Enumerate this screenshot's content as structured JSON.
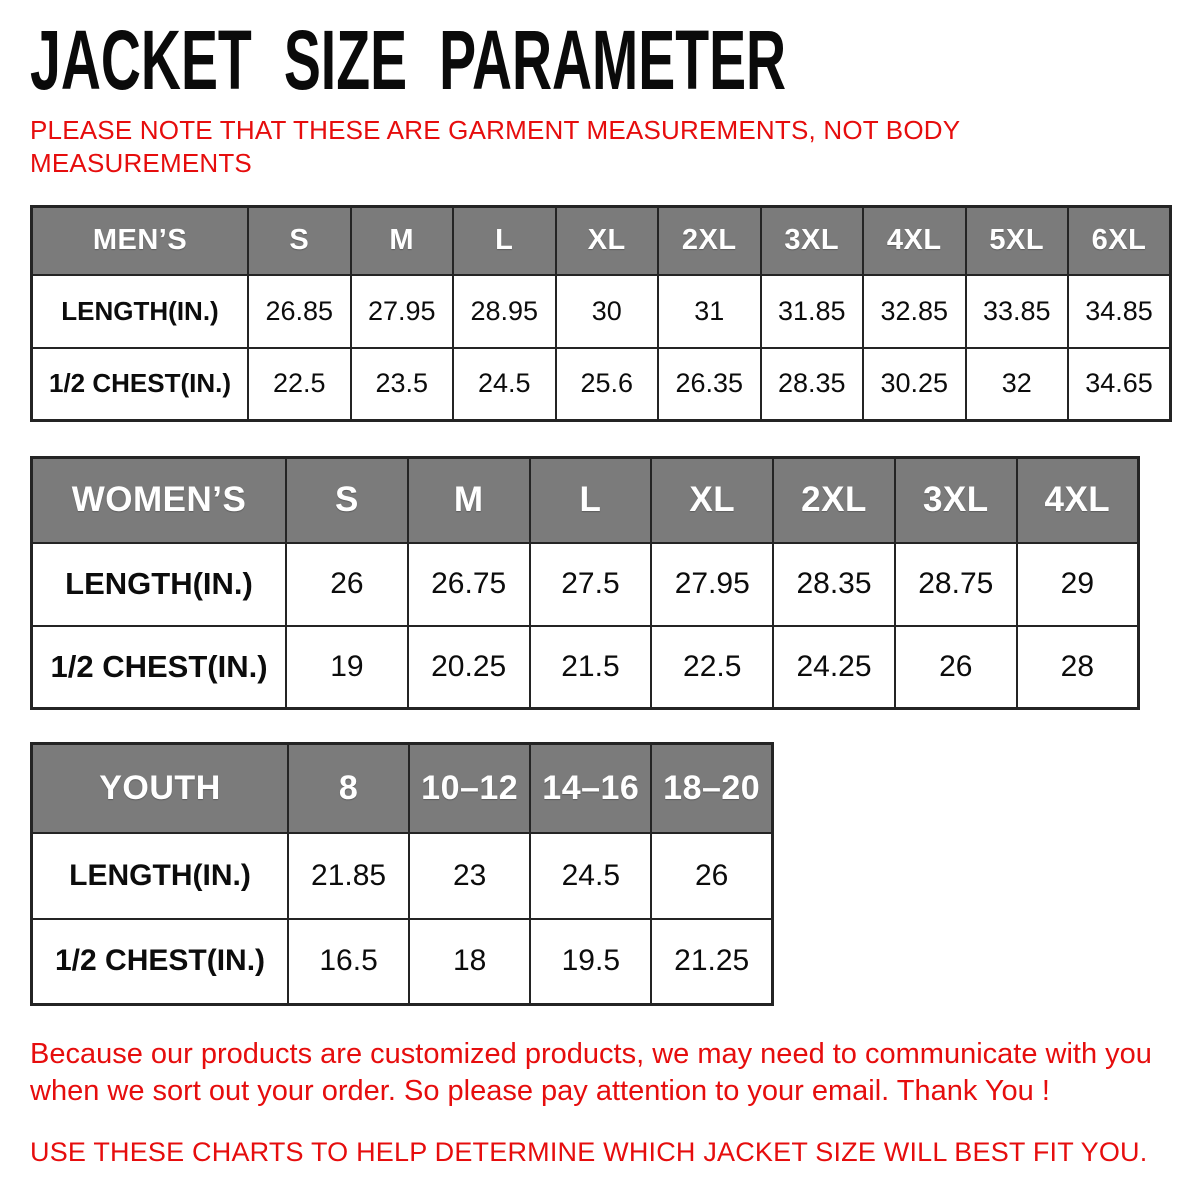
{
  "page": {
    "title": "JACKET SIZE PARAMETER",
    "note": "PLEASE NOTE THAT THESE ARE GARMENT MEASUREMENTS, NOT BODY MEASUREMENTS",
    "footer_paragraph": "Because our products are customized products, we may need to communicate with you when we sort out your order. So please pay attention to your email. Thank You !",
    "fit_advice": "USE THESE CHARTS TO HELP DETERMINE WHICH JACKET SIZE WILL BEST FIT YOU.",
    "colors": {
      "accent_red": "#e60d0d",
      "table_header_gray": "#7b7b7b",
      "table_border": "#242424",
      "header_text": "#ffffff",
      "body_text": "#0c0c0c"
    }
  },
  "tables": [
    {
      "name": "mens",
      "header": [
        "MEN’S",
        "S",
        "M",
        "L",
        "XL",
        "2XL",
        "3XL",
        "4XL",
        "5XL",
        "6XL"
      ],
      "rows": [
        [
          "LENGTH(IN.)",
          "26.85",
          "27.95",
          "28.95",
          "30",
          "31",
          "31.85",
          "32.85",
          "33.85",
          "34.85"
        ],
        [
          "1/2 CHEST(IN.)",
          "22.5",
          "23.5",
          "24.5",
          "25.6",
          "26.35",
          "28.35",
          "30.25",
          "32",
          "34.65"
        ]
      ]
    },
    {
      "name": "womens",
      "header": [
        "WOMEN’S",
        "S",
        "M",
        "L",
        "XL",
        "2XL",
        "3XL",
        "4XL"
      ],
      "rows": [
        [
          "LENGTH(IN.)",
          "26",
          "26.75",
          "27.5",
          "27.95",
          "28.35",
          "28.75",
          "29"
        ],
        [
          "1/2 CHEST(IN.)",
          "19",
          "20.25",
          "21.5",
          "22.5",
          "24.25",
          "26",
          "28"
        ]
      ]
    },
    {
      "name": "youth",
      "header": [
        "YOUTH",
        "8",
        "10–12",
        "14–16",
        "18–20"
      ],
      "rows": [
        [
          "LENGTH(IN.)",
          "21.85",
          "23",
          "24.5",
          "26"
        ],
        [
          "1/2 CHEST(IN.)",
          "16.5",
          "18",
          "19.5",
          "21.25"
        ]
      ]
    }
  ],
  "chart_data": [
    {
      "type": "table",
      "title": "MEN’S",
      "columns": [
        "S",
        "M",
        "L",
        "XL",
        "2XL",
        "3XL",
        "4XL",
        "5XL",
        "6XL"
      ],
      "series": [
        {
          "name": "LENGTH(IN.)",
          "values": [
            26.85,
            27.95,
            28.95,
            30,
            31,
            31.85,
            32.85,
            33.85,
            34.85
          ]
        },
        {
          "name": "1/2 CHEST(IN.)",
          "values": [
            22.5,
            23.5,
            24.5,
            25.6,
            26.35,
            28.35,
            30.25,
            32,
            34.65
          ]
        }
      ]
    },
    {
      "type": "table",
      "title": "WOMEN’S",
      "columns": [
        "S",
        "M",
        "L",
        "XL",
        "2XL",
        "3XL",
        "4XL"
      ],
      "series": [
        {
          "name": "LENGTH(IN.)",
          "values": [
            26,
            26.75,
            27.5,
            27.95,
            28.35,
            28.75,
            29
          ]
        },
        {
          "name": "1/2 CHEST(IN.)",
          "values": [
            19,
            20.25,
            21.5,
            22.5,
            24.25,
            26,
            28
          ]
        }
      ]
    },
    {
      "type": "table",
      "title": "YOUTH",
      "columns": [
        "8",
        "10–12",
        "14–16",
        "18–20"
      ],
      "series": [
        {
          "name": "LENGTH(IN.)",
          "values": [
            21.85,
            23,
            24.5,
            26
          ]
        },
        {
          "name": "1/2 CHEST(IN.)",
          "values": [
            16.5,
            18,
            19.5,
            21.25
          ]
        }
      ]
    }
  ]
}
